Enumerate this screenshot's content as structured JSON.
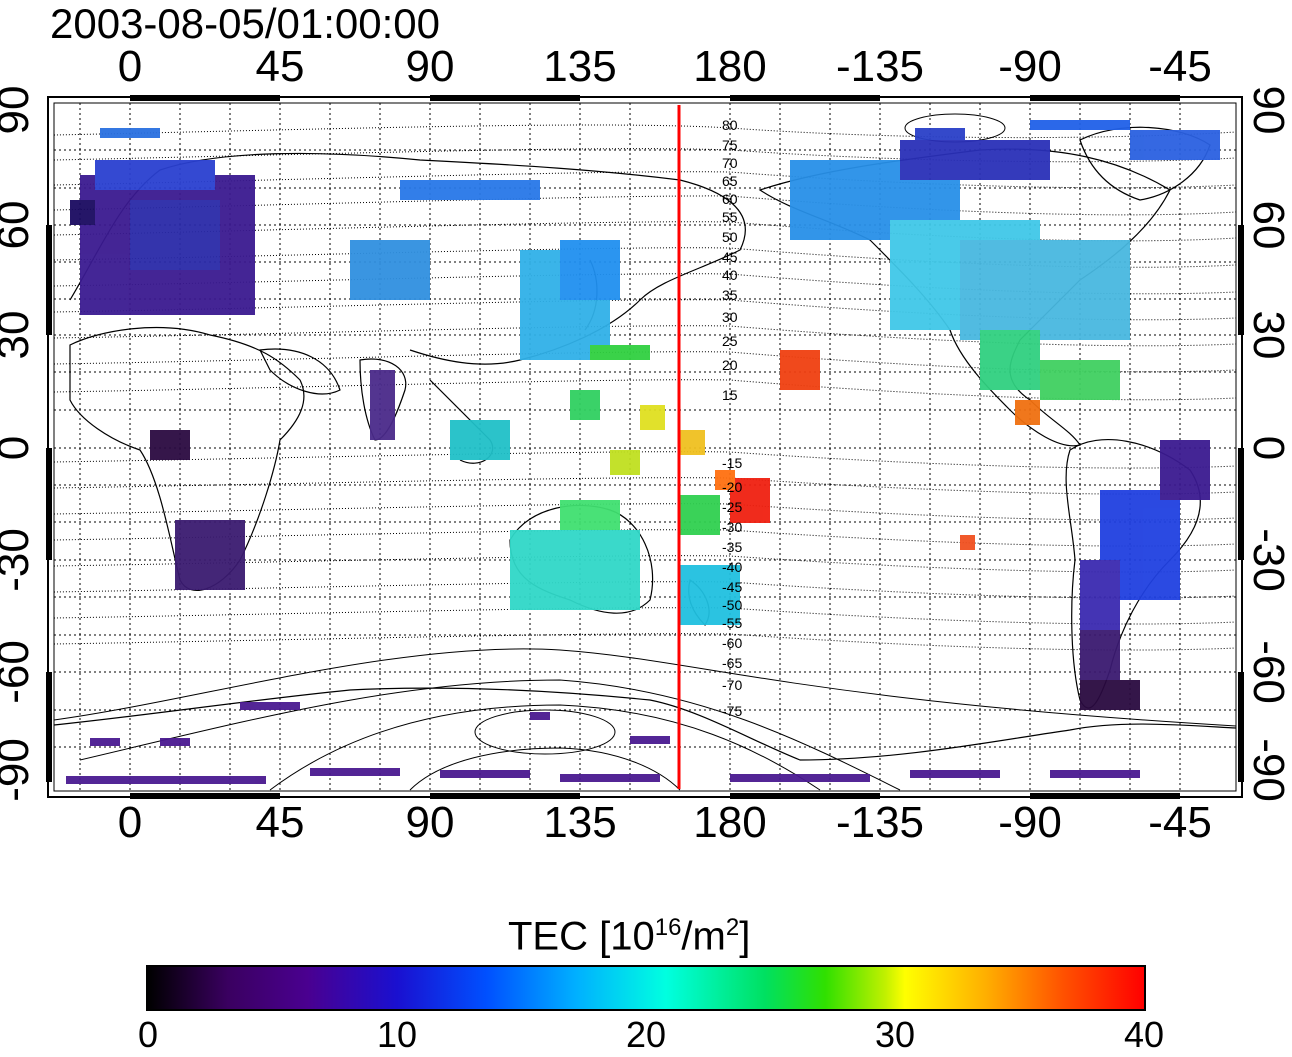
{
  "title": "2003-08-05/01:00:00",
  "lon_ticks": [
    "0",
    "45",
    "90",
    "135",
    "180",
    "-135",
    "-90",
    "-45"
  ],
  "lat_ticks": [
    "90",
    "60",
    "30",
    "0",
    "-30",
    "-60",
    "-90"
  ],
  "contour_labels": [
    "80",
    "75",
    "70",
    "65",
    "60",
    "55",
    "50",
    "45",
    "40",
    "35",
    "30",
    "25",
    "20",
    "15",
    "-15",
    "-20",
    "-25",
    "-30",
    "-35",
    "-40",
    "-45",
    "-50",
    "-55",
    "-60",
    "-65",
    "-70",
    "-75"
  ],
  "colorbar": {
    "title": "TEC  [10",
    "exp1": "16",
    "unit": "/m",
    "exp2": "2",
    "close": "]",
    "ticks": [
      "0",
      "10",
      "20",
      "30",
      "40"
    ],
    "range": [
      0,
      40
    ]
  },
  "colors": {
    "marker_line": "#ff0000",
    "low": "#000000",
    "high": "#ff0000"
  }
}
